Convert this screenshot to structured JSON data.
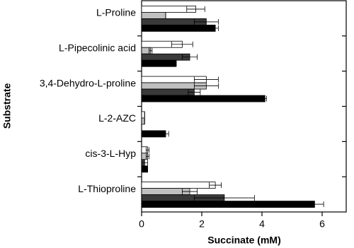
{
  "chart_data": {
    "type": "hbar",
    "x_label": "Succinate (mM)",
    "y_label": "Substrate",
    "categories": [
      "L-Proline",
      "L-Pipecolinic acid",
      "3,4-Dehydro-L-proline",
      "L-2-AZC",
      "cis-3-L-Hyp",
      "L-Thioproline"
    ],
    "series": [
      {
        "color": "#ffffff",
        "values": [
          1.8,
          1.35,
          2.15,
          0.1,
          0.2,
          2.45
        ],
        "errors": [
          0.3,
          0.35,
          0.4,
          0,
          0.05,
          0.2
        ]
      },
      {
        "color": "#c0c0c0",
        "values": [
          0.8,
          0.3,
          2.15,
          0.1,
          0.2,
          1.6
        ],
        "errors": [
          0,
          0.05,
          0.4,
          0,
          0.05,
          0.25
        ]
      },
      {
        "color": "#3a3a3a",
        "values": [
          2.15,
          1.6,
          1.75,
          0,
          0.1,
          2.75
        ],
        "errors": [
          0.4,
          0.25,
          0.2,
          0,
          0.1,
          1.0
        ]
      },
      {
        "color": "#000000",
        "values": [
          2.45,
          1.15,
          4.1,
          0.8,
          0.2,
          5.75
        ],
        "errors": [
          0.1,
          0,
          0.05,
          0.1,
          0,
          0.3
        ]
      }
    ],
    "xlim": [
      0,
      6.8
    ],
    "xticks": [
      0,
      2,
      4,
      6
    ]
  }
}
